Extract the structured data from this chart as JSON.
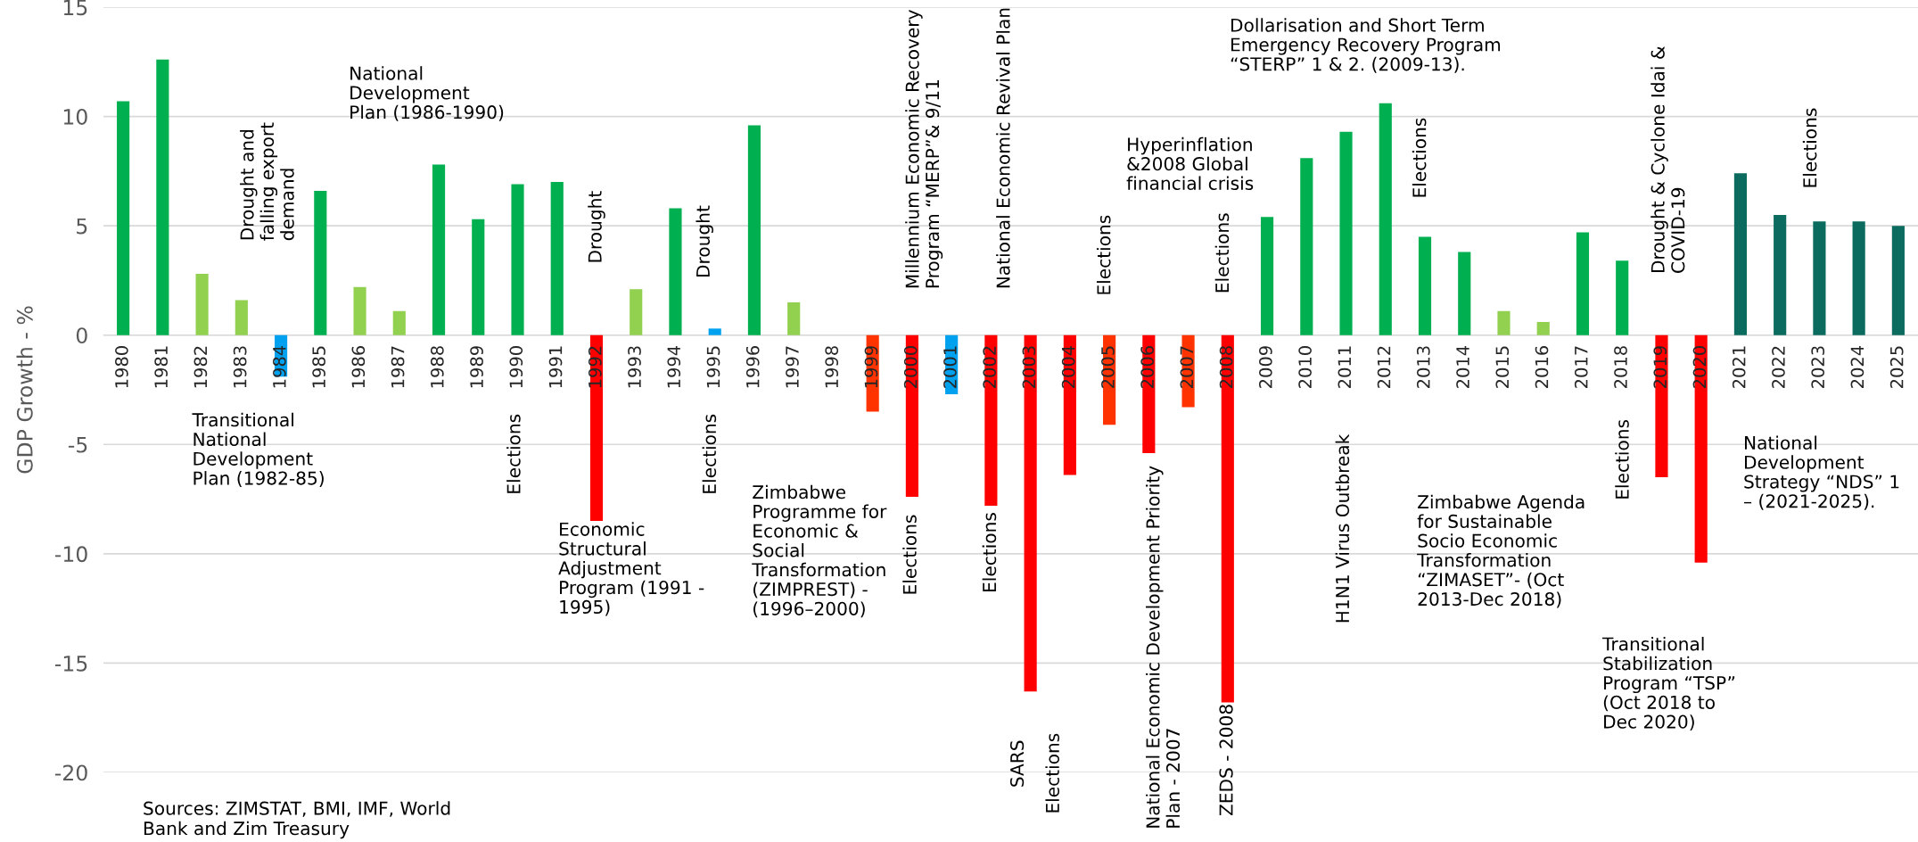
{
  "chart_data": {
    "type": "bar",
    "ylabel": "GDP Growth - %",
    "categories": [
      "1980",
      "1981",
      "1982",
      "1983",
      "1984",
      "1985",
      "1986",
      "1987",
      "1988",
      "1989",
      "1990",
      "1991",
      "1992",
      "1993",
      "1994",
      "1995",
      "1996",
      "1997",
      "1998",
      "1999",
      "2000",
      "2001",
      "2002",
      "2003",
      "2004",
      "2005",
      "2006",
      "2007",
      "2008",
      "2009",
      "2010",
      "2011",
      "2012",
      "2013",
      "2014",
      "2015",
      "2016",
      "2017",
      "2018",
      "2019",
      "2020",
      "2021",
      "2022",
      "2023",
      "2024",
      "2025"
    ],
    "values": [
      10.7,
      12.6,
      2.8,
      1.6,
      -1.9,
      6.6,
      2.2,
      1.1,
      7.8,
      5.3,
      6.9,
      7.0,
      -8.5,
      2.1,
      5.8,
      0.3,
      9.6,
      1.5,
      null,
      -3.5,
      -7.4,
      -2.7,
      -7.8,
      -16.3,
      -6.4,
      -4.1,
      -5.4,
      -3.3,
      -16.8,
      5.4,
      8.1,
      9.3,
      10.6,
      4.5,
      3.8,
      1.1,
      0.6,
      4.7,
      3.4,
      -6.5,
      -10.4,
      7.4,
      5.5,
      5.2,
      5.2,
      5.0
    ],
    "colors": [
      "#00b050",
      "#00b050",
      "#92d050",
      "#92d050",
      "#00a2f0",
      "#00b050",
      "#92d050",
      "#92d050",
      "#00b050",
      "#00b050",
      "#00b050",
      "#00b050",
      "#ff0000",
      "#92d050",
      "#00b050",
      "#00a2f0",
      "#00b050",
      "#92d050",
      "#92d050",
      "#ff3300",
      "#ff0000",
      "#00a2f0",
      "#ff0000",
      "#ff0000",
      "#ff0000",
      "#ff3300",
      "#ff0000",
      "#ff3300",
      "#ff0000",
      "#00b050",
      "#00b050",
      "#00b050",
      "#00b050",
      "#00b050",
      "#00b050",
      "#92d050",
      "#92d050",
      "#00b050",
      "#00b050",
      "#ff0000",
      "#ff0000",
      "#0b6b5e",
      "#0b6b5e",
      "#0b6b5e",
      "#0b6b5e",
      "#0b6b5e"
    ],
    "ylim": [
      -20,
      15
    ],
    "yticks": [
      -20,
      -15,
      -10,
      -5,
      0,
      5,
      10,
      15
    ],
    "grid": "y",
    "annotations": [
      "National\nDevelopment\nPlan (1986-1990)",
      "Transitional\nNational\nDevelopment\nPlan (1982-85)",
      "Economic\nStructural\nAdjustment\nProgram (1991 -\n1995)",
      "Zimbabwe\nProgramme for\nEconomic &\nSocial\nTransformation\n(ZIMPREST) -\n(1996–2000)",
      "Hyperinflation\n&2008 Global\nfinancial crisis",
      "Dollarisation and Short Term\nEmergency Recovery Program\n“STERP” 1 & 2. (2009-13).",
      "Zimbabwe Agenda\nfor Sustainable\nSocio Economic\nTransformation\n“ZIMASET”- (Oct\n2013-Dec 2018)",
      "Transitional\nStabilization\nProgram “TSP”\n(Oct 2018 to\nDec 2020)",
      "National\nDevelopment\nStrategy “NDS” 1\n– (2021-2025).",
      "Drought and\nfalling export\ndemand",
      "Elections",
      "Drought",
      "Drought",
      "Elections",
      "Millennium Economic Recovery\nProgram “MERP”& 9/11",
      "Elections",
      "National Economic Revival Plan",
      "Elections",
      "SARS",
      "Elections",
      "Elections",
      "National Economic Development Priority\nPlan - 2007",
      "ZEDS - 2008",
      "Elections",
      "H1N1 Virus Outbreak",
      "Elections",
      "Elections",
      "Drought & Cyclone Idai &\nCOVID-19",
      "Elections",
      "Sources: ZIMSTAT, BMI, IMF, World\nBank and Zim Treasury"
    ]
  }
}
